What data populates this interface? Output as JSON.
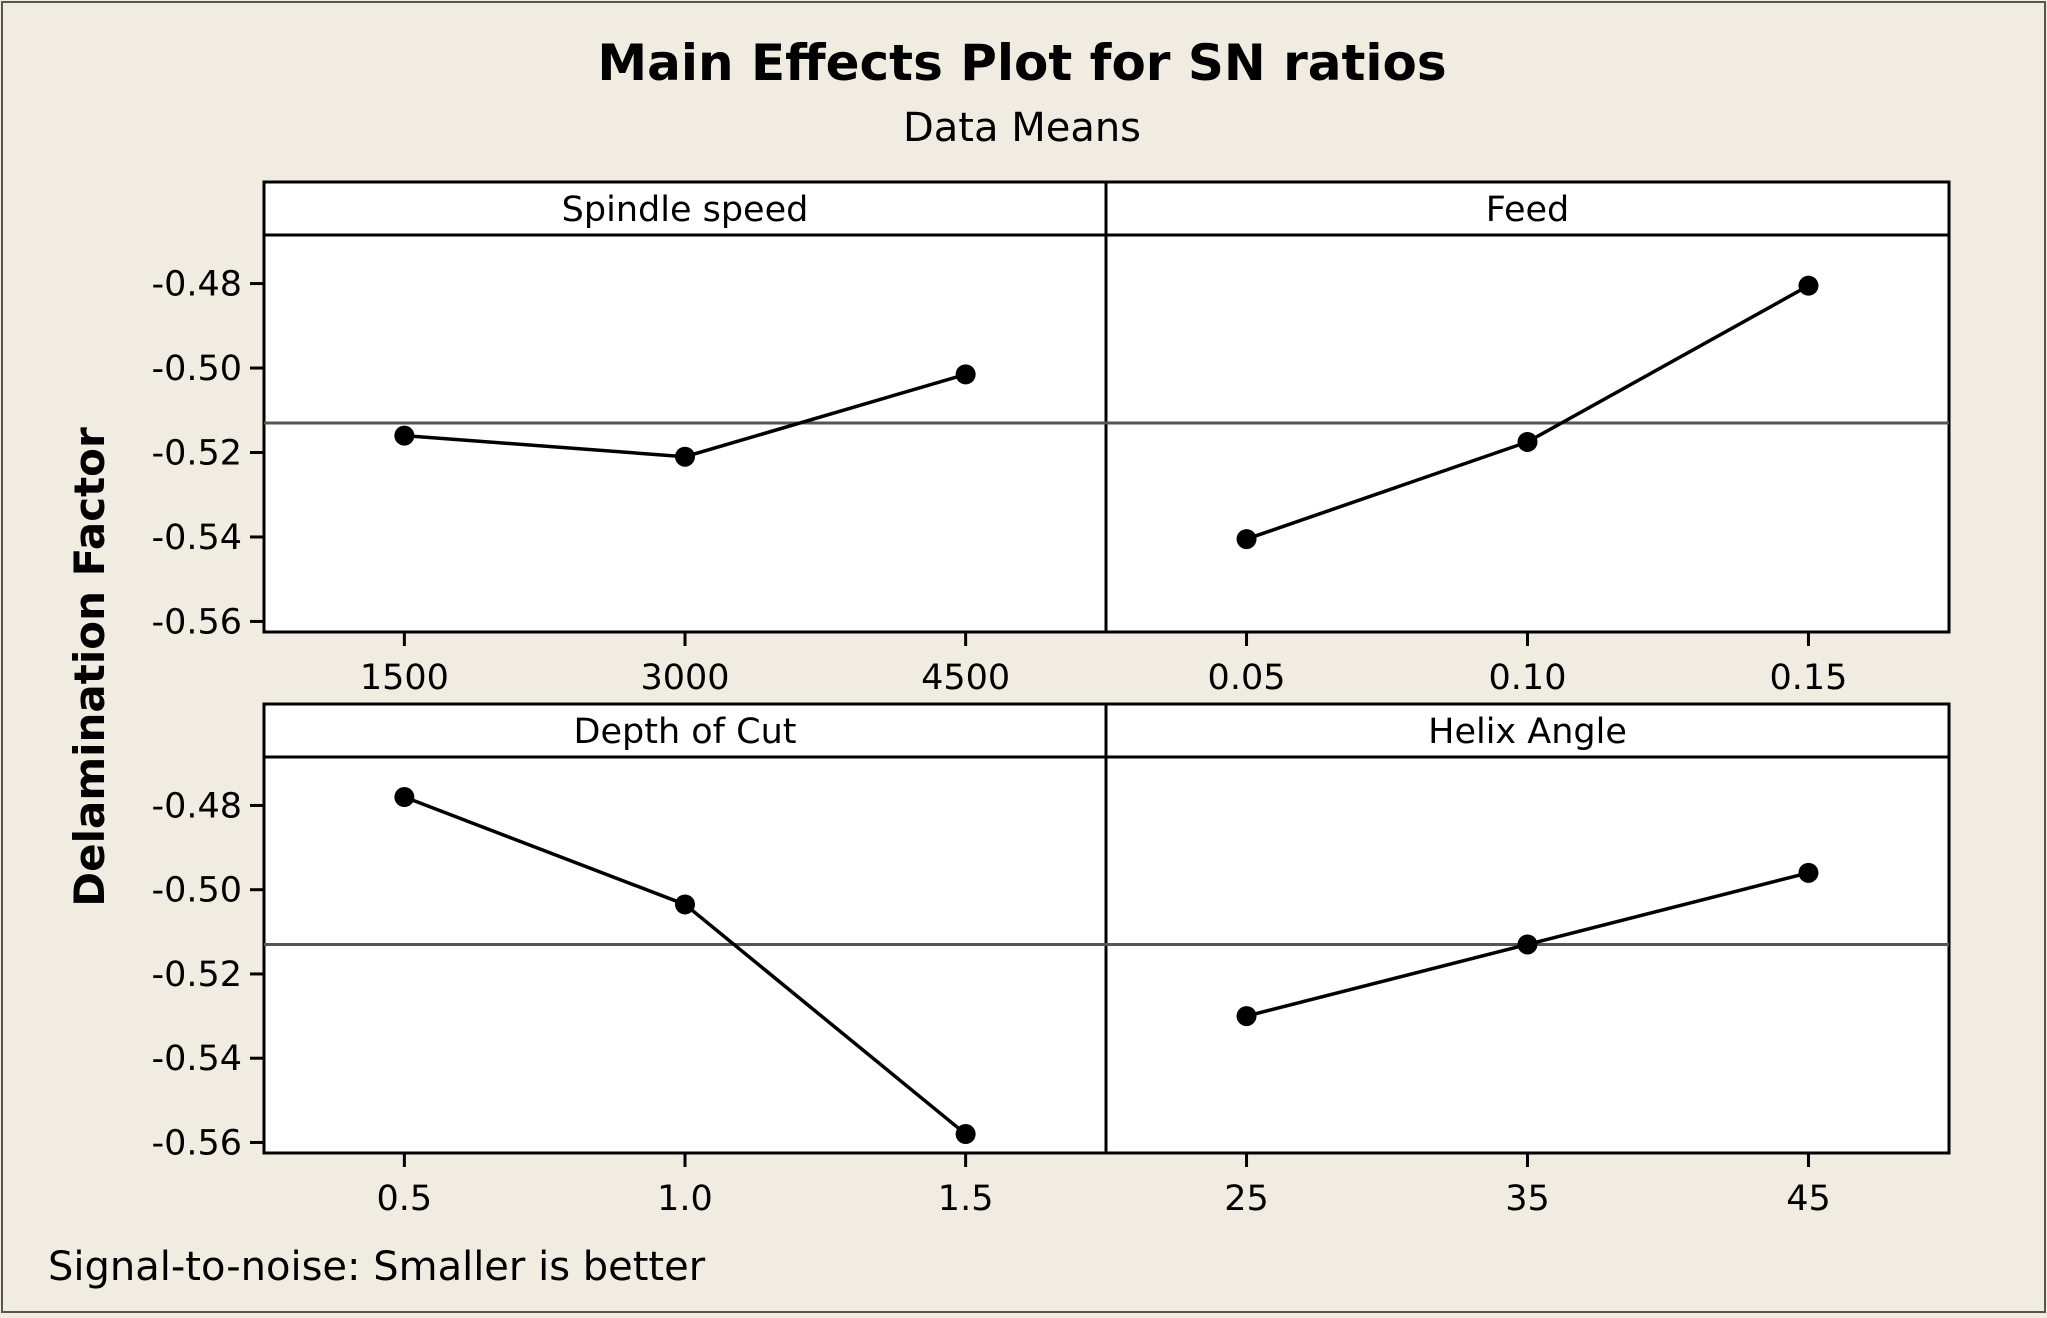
{
  "chart_data": {
    "type": "line",
    "title": "Main Effects Plot for SN ratios",
    "subtitle": "Data Means",
    "ylabel": "Delamination Factor",
    "footnote": "Signal-to-noise: Smaller is better",
    "ylim": [
      -0.5625,
      -0.4685
    ],
    "yticks": [
      -0.48,
      -0.5,
      -0.52,
      -0.54,
      -0.56
    ],
    "ytick_labels": [
      "-0.48",
      "-0.50",
      "-0.52",
      "-0.54",
      "-0.56"
    ],
    "mean_line": -0.513,
    "grid": false,
    "panels": [
      {
        "name": "Spindle speed",
        "x_labels": [
          "1500",
          "3000",
          "4500"
        ],
        "values": [
          -0.516,
          -0.521,
          -0.5015
        ]
      },
      {
        "name": "Feed",
        "x_labels": [
          "0.05",
          "0.10",
          "0.15"
        ],
        "values": [
          -0.5405,
          -0.5175,
          -0.4805
        ]
      },
      {
        "name": "Depth of Cut",
        "x_labels": [
          "0.5",
          "1.0",
          "1.5"
        ],
        "values": [
          -0.478,
          -0.5035,
          -0.558
        ]
      },
      {
        "name": "Helix Angle",
        "x_labels": [
          "25",
          "35",
          "45"
        ],
        "values": [
          -0.53,
          -0.513,
          -0.496
        ]
      }
    ]
  }
}
